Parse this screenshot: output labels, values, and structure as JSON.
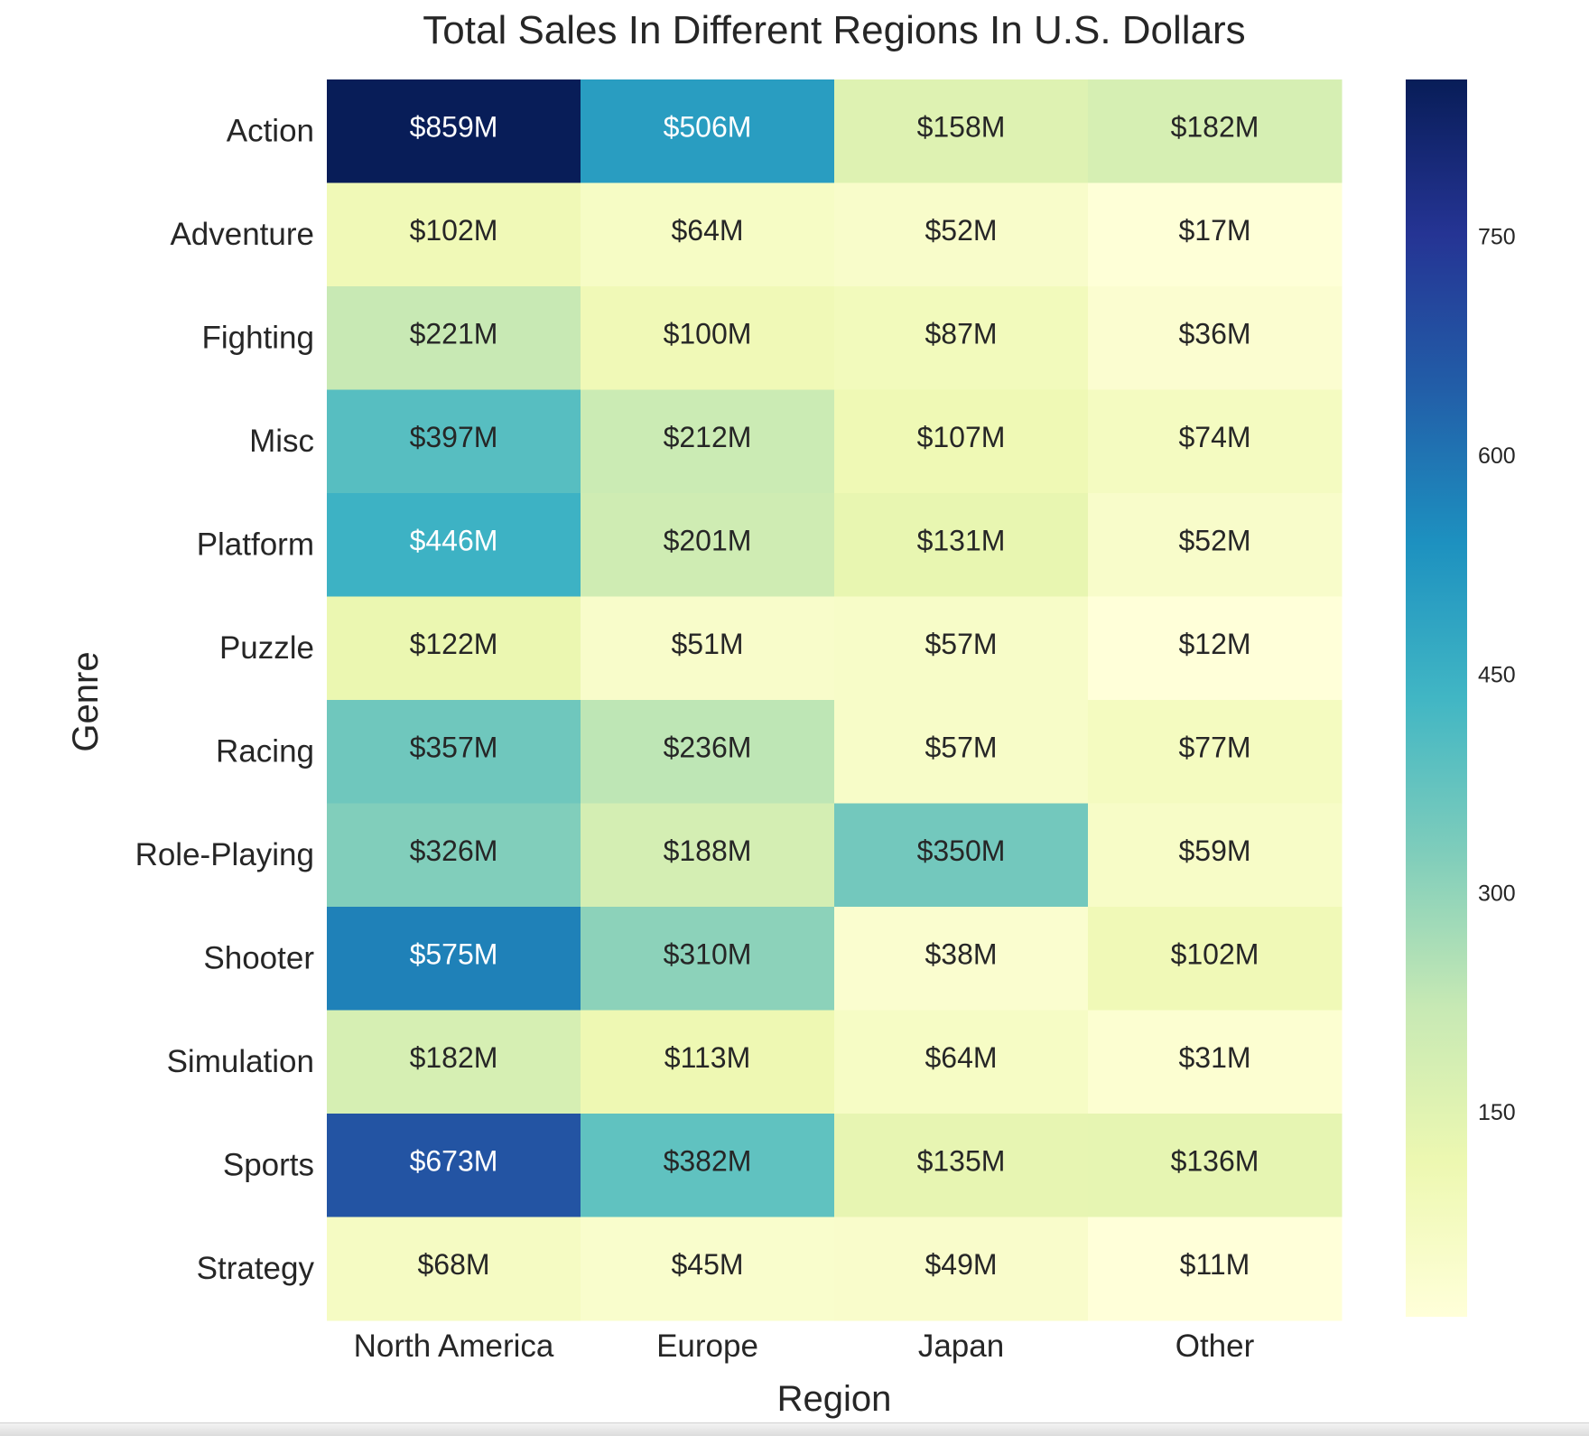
{
  "chart_data": {
    "type": "heatmap",
    "title": "Total Sales In Different Regions In U.S. Dollars",
    "xlabel": "Region",
    "ylabel": "Genre",
    "colormap": "YlGnBu",
    "value_format": "${v}M",
    "columns": [
      "North America",
      "Europe",
      "Japan",
      "Other"
    ],
    "rows": [
      "Action",
      "Adventure",
      "Fighting",
      "Misc",
      "Platform",
      "Puzzle",
      "Racing",
      "Role-Playing",
      "Shooter",
      "Simulation",
      "Sports",
      "Strategy"
    ],
    "values": [
      [
        859,
        506,
        158,
        182
      ],
      [
        102,
        64,
        52,
        17
      ],
      [
        221,
        100,
        87,
        36
      ],
      [
        397,
        212,
        107,
        74
      ],
      [
        446,
        201,
        131,
        52
      ],
      [
        122,
        51,
        57,
        12
      ],
      [
        357,
        236,
        57,
        77
      ],
      [
        326,
        188,
        350,
        59
      ],
      [
        575,
        310,
        38,
        102
      ],
      [
        182,
        113,
        64,
        31
      ],
      [
        673,
        382,
        135,
        136
      ],
      [
        68,
        45,
        49,
        11
      ]
    ],
    "color_range": [
      11,
      859
    ],
    "colorbar_ticks": [
      150,
      300,
      450,
      600,
      750
    ],
    "grid": false,
    "colorbar_position": "right",
    "text_colors": {
      "light": "#ffffff",
      "dark": "#262626"
    }
  }
}
